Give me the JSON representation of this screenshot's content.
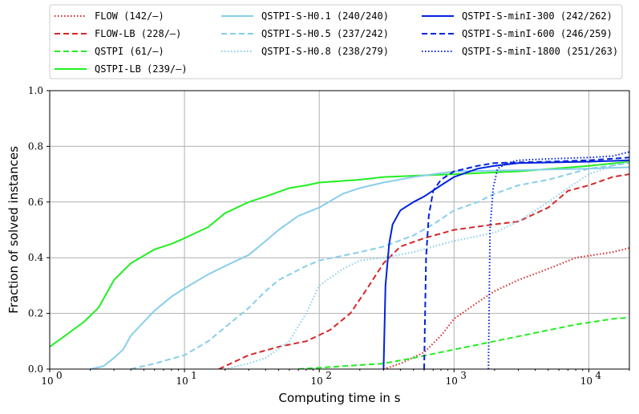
{
  "chart_data": {
    "type": "line",
    "xscale": "log",
    "xlabel": "Computing time in s",
    "ylabel": "Fraction of solved instances",
    "xlim": [
      1,
      20000
    ],
    "ylim": [
      0,
      1
    ],
    "grid": true,
    "legend_placement": "top (above plot, 3 columns)",
    "xticks": [
      {
        "value": 1,
        "base": "10",
        "exp": "0"
      },
      {
        "value": 10,
        "base": "10",
        "exp": "1"
      },
      {
        "value": 100,
        "base": "10",
        "exp": "2"
      },
      {
        "value": 1000,
        "base": "10",
        "exp": "3"
      },
      {
        "value": 10000,
        "base": "10",
        "exp": "4"
      }
    ],
    "yticks": [
      "0.0",
      "0.2",
      "0.4",
      "0.6",
      "0.8",
      "1.0"
    ],
    "series": [
      {
        "name": "FLOW",
        "stats": "(142/–)",
        "color": "#d62728",
        "dash": "dotted",
        "points": [
          [
            300,
            0
          ],
          [
            400,
            0.02
          ],
          [
            600,
            0.06
          ],
          [
            800,
            0.12
          ],
          [
            1000,
            0.18
          ],
          [
            1500,
            0.24
          ],
          [
            2000,
            0.28
          ],
          [
            3000,
            0.32
          ],
          [
            5000,
            0.36
          ],
          [
            8000,
            0.4
          ],
          [
            15000,
            0.42
          ],
          [
            20000,
            0.435
          ]
        ]
      },
      {
        "name": "FLOW-LB",
        "stats": "(228/–)",
        "color": "#d62728",
        "dash": "dashed",
        "points": [
          [
            18,
            0
          ],
          [
            22,
            0.02
          ],
          [
            30,
            0.05
          ],
          [
            50,
            0.08
          ],
          [
            80,
            0.1
          ],
          [
            120,
            0.14
          ],
          [
            170,
            0.2
          ],
          [
            220,
            0.28
          ],
          [
            300,
            0.38
          ],
          [
            400,
            0.44
          ],
          [
            600,
            0.47
          ],
          [
            1000,
            0.5
          ],
          [
            2000,
            0.52
          ],
          [
            3000,
            0.53
          ],
          [
            5000,
            0.58
          ],
          [
            7000,
            0.64
          ],
          [
            10000,
            0.66
          ],
          [
            15000,
            0.69
          ],
          [
            20000,
            0.7
          ]
        ]
      },
      {
        "name": "QSTPI",
        "stats": "(61/–)",
        "color": "#22ee22",
        "dash": "dashed",
        "points": [
          [
            70,
            0
          ],
          [
            300,
            0.02
          ],
          [
            500,
            0.04
          ],
          [
            1000,
            0.07
          ],
          [
            2000,
            0.1
          ],
          [
            4000,
            0.13
          ],
          [
            8000,
            0.16
          ],
          [
            15000,
            0.18
          ],
          [
            20000,
            0.185
          ]
        ]
      },
      {
        "name": "QSTPI-LB",
        "stats": "(239/–)",
        "color": "#22ee22",
        "dash": "solid",
        "points": [
          [
            1,
            0.08
          ],
          [
            1.3,
            0.12
          ],
          [
            1.8,
            0.17
          ],
          [
            2.3,
            0.22
          ],
          [
            3,
            0.32
          ],
          [
            4,
            0.38
          ],
          [
            6,
            0.43
          ],
          [
            8,
            0.45
          ],
          [
            10,
            0.47
          ],
          [
            15,
            0.51
          ],
          [
            20,
            0.56
          ],
          [
            30,
            0.6
          ],
          [
            40,
            0.62
          ],
          [
            60,
            0.65
          ],
          [
            80,
            0.66
          ],
          [
            100,
            0.67
          ],
          [
            200,
            0.68
          ],
          [
            300,
            0.69
          ],
          [
            1000,
            0.7
          ],
          [
            3000,
            0.71
          ],
          [
            10000,
            0.73
          ],
          [
            20000,
            0.745
          ]
        ]
      },
      {
        "name": "QSTPI-S-H0.1",
        "stats": "(240/240)",
        "color": "#87ceeb",
        "dash": "solid",
        "points": [
          [
            2,
            0
          ],
          [
            2.5,
            0.01
          ],
          [
            3,
            0.04
          ],
          [
            3.5,
            0.07
          ],
          [
            4,
            0.12
          ],
          [
            5,
            0.17
          ],
          [
            6,
            0.21
          ],
          [
            8,
            0.26
          ],
          [
            10,
            0.29
          ],
          [
            15,
            0.34
          ],
          [
            20,
            0.37
          ],
          [
            30,
            0.41
          ],
          [
            40,
            0.46
          ],
          [
            50,
            0.5
          ],
          [
            70,
            0.55
          ],
          [
            100,
            0.58
          ],
          [
            150,
            0.63
          ],
          [
            200,
            0.65
          ],
          [
            300,
            0.67
          ],
          [
            500,
            0.69
          ],
          [
            1000,
            0.71
          ],
          [
            10000,
            0.72
          ],
          [
            20000,
            0.725
          ]
        ]
      },
      {
        "name": "QSTPI-S-H0.5",
        "stats": "(237/242)",
        "color": "#87ceeb",
        "dash": "dashed",
        "points": [
          [
            4,
            0
          ],
          [
            6,
            0.02
          ],
          [
            10,
            0.05
          ],
          [
            15,
            0.1
          ],
          [
            20,
            0.15
          ],
          [
            30,
            0.22
          ],
          [
            40,
            0.28
          ],
          [
            50,
            0.32
          ],
          [
            80,
            0.37
          ],
          [
            100,
            0.39
          ],
          [
            200,
            0.42
          ],
          [
            300,
            0.44
          ],
          [
            500,
            0.48
          ],
          [
            700,
            0.52
          ],
          [
            1000,
            0.57
          ],
          [
            1500,
            0.6
          ],
          [
            2000,
            0.63
          ],
          [
            3000,
            0.66
          ],
          [
            5000,
            0.68
          ],
          [
            10000,
            0.72
          ],
          [
            20000,
            0.74
          ]
        ]
      },
      {
        "name": "QSTPI-S-H0.8",
        "stats": "(238/279)",
        "color": "#87ceeb",
        "dash": "dotted",
        "points": [
          [
            20,
            0
          ],
          [
            30,
            0.02
          ],
          [
            40,
            0.04
          ],
          [
            60,
            0.1
          ],
          [
            80,
            0.2
          ],
          [
            100,
            0.3
          ],
          [
            150,
            0.36
          ],
          [
            200,
            0.39
          ],
          [
            300,
            0.4
          ],
          [
            500,
            0.42
          ],
          [
            700,
            0.44
          ],
          [
            1000,
            0.46
          ],
          [
            2000,
            0.49
          ],
          [
            3000,
            0.53
          ],
          [
            5000,
            0.6
          ],
          [
            7000,
            0.65
          ],
          [
            10000,
            0.7
          ],
          [
            15000,
            0.73
          ],
          [
            20000,
            0.745
          ]
        ]
      },
      {
        "name": "QSTPI-S-minI-300",
        "stats": "(242/262)",
        "color": "#0022dd",
        "dash": "solid",
        "points": [
          [
            300,
            0
          ],
          [
            310,
            0.3
          ],
          [
            330,
            0.45
          ],
          [
            350,
            0.52
          ],
          [
            400,
            0.57
          ],
          [
            500,
            0.6
          ],
          [
            600,
            0.62
          ],
          [
            800,
            0.66
          ],
          [
            1000,
            0.69
          ],
          [
            1500,
            0.72
          ],
          [
            2000,
            0.73
          ],
          [
            3000,
            0.74
          ],
          [
            10000,
            0.745
          ],
          [
            20000,
            0.75
          ]
        ]
      },
      {
        "name": "QSTPI-S-minI-600",
        "stats": "(246/259)",
        "color": "#0022dd",
        "dash": "dashed",
        "points": [
          [
            600,
            0
          ],
          [
            620,
            0.4
          ],
          [
            650,
            0.55
          ],
          [
            700,
            0.64
          ],
          [
            800,
            0.68
          ],
          [
            1000,
            0.71
          ],
          [
            1500,
            0.73
          ],
          [
            2000,
            0.74
          ],
          [
            5000,
            0.745
          ],
          [
            10000,
            0.75
          ],
          [
            20000,
            0.76
          ]
        ]
      },
      {
        "name": "QSTPI-S-minI-1800",
        "stats": "(251/263)",
        "color": "#0022dd",
        "dash": "dotted",
        "points": [
          [
            1800,
            0
          ],
          [
            1850,
            0.5
          ],
          [
            1950,
            0.65
          ],
          [
            2100,
            0.72
          ],
          [
            2500,
            0.74
          ],
          [
            3000,
            0.75
          ],
          [
            5000,
            0.755
          ],
          [
            10000,
            0.76
          ],
          [
            15000,
            0.765
          ],
          [
            20000,
            0.78
          ]
        ]
      }
    ]
  }
}
